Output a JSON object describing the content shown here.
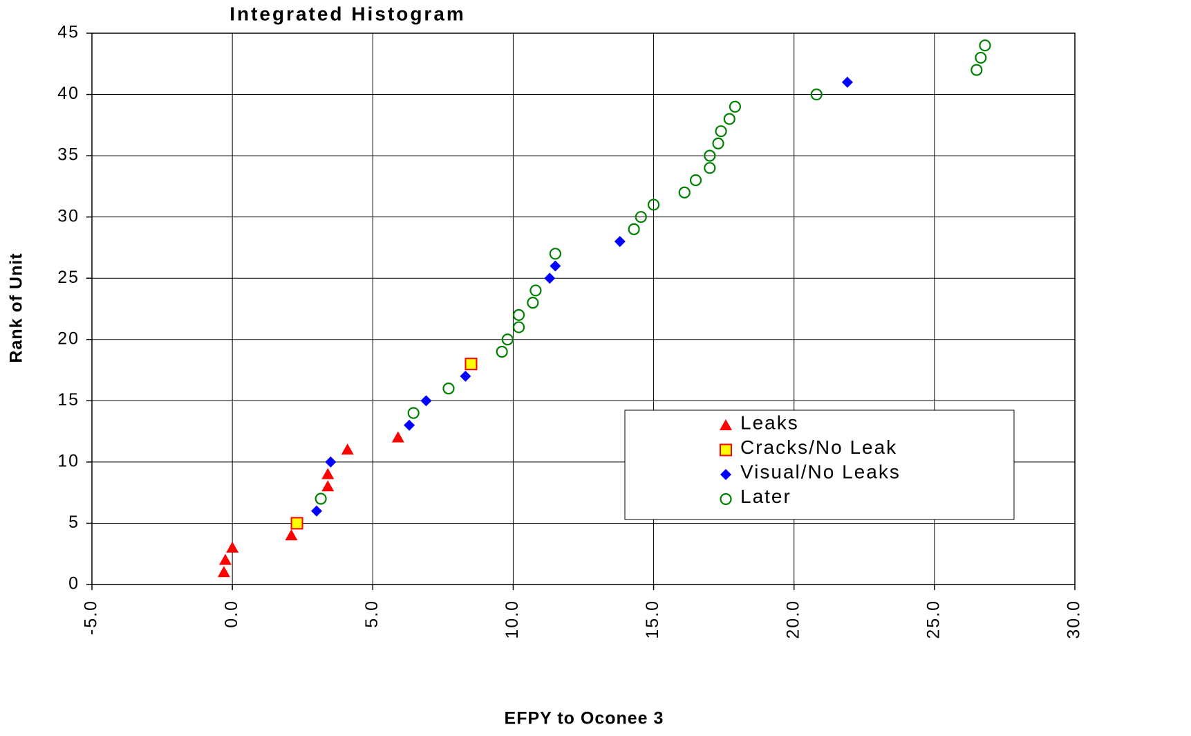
{
  "chart_data": {
    "type": "scatter",
    "title": "Integrated Histogram",
    "xlabel": "EFPY to Oconee 3",
    "ylabel": "Rank of Unit",
    "xlim": [
      -5,
      30
    ],
    "ylim": [
      0,
      45
    ],
    "xticks": [
      {
        "value": -5,
        "label": "-5.0"
      },
      {
        "value": 0,
        "label": "0.0"
      },
      {
        "value": 5,
        "label": "5.0"
      },
      {
        "value": 10,
        "label": "10.0"
      },
      {
        "value": 15,
        "label": "15.0"
      },
      {
        "value": 20,
        "label": "20.0"
      },
      {
        "value": 25,
        "label": "25.0"
      },
      {
        "value": 30,
        "label": "30.0"
      }
    ],
    "yticks": [
      0,
      5,
      10,
      15,
      20,
      25,
      30,
      35,
      40,
      45
    ],
    "grid": true,
    "legend": "lower right",
    "series": [
      {
        "name": "Leaks",
        "marker": "triangle",
        "color": "#ff0000",
        "x": [
          -0.3,
          -0.25,
          0,
          2.1,
          3.4,
          3.4,
          4.1,
          5.9
        ],
        "values": [
          1,
          2,
          3,
          4,
          8,
          9,
          11,
          12
        ]
      },
      {
        "name": "Cracks/No Leak",
        "marker": "square",
        "color": "#ffff00",
        "edgecolor": "#ff0000",
        "x": [
          2.3,
          8.5
        ],
        "values": [
          5,
          18
        ]
      },
      {
        "name": "Visual/No Leaks",
        "marker": "diamond",
        "color": "#0000ff",
        "x": [
          3.0,
          3.5,
          6.3,
          6.9,
          8.3,
          11.3,
          11.5,
          13.8,
          21.9
        ],
        "values": [
          6,
          10,
          13,
          15,
          17,
          25,
          26,
          28,
          41
        ]
      },
      {
        "name": "Later",
        "marker": "open-circle",
        "color": "#008000",
        "x": [
          3.15,
          6.45,
          7.7,
          9.6,
          9.8,
          10.2,
          10.2,
          10.7,
          10.8,
          11.5,
          14.3,
          14.55,
          15.0,
          16.1,
          16.5,
          17.0,
          17.0,
          17.3,
          17.4,
          17.7,
          17.9,
          20.8,
          26.5,
          26.65,
          26.8
        ],
        "values": [
          7,
          14,
          16,
          19,
          20,
          21,
          22,
          23,
          24,
          27,
          29,
          30,
          31,
          32,
          33,
          34,
          35,
          36,
          37,
          38,
          39,
          40,
          42,
          43,
          44
        ]
      }
    ]
  }
}
